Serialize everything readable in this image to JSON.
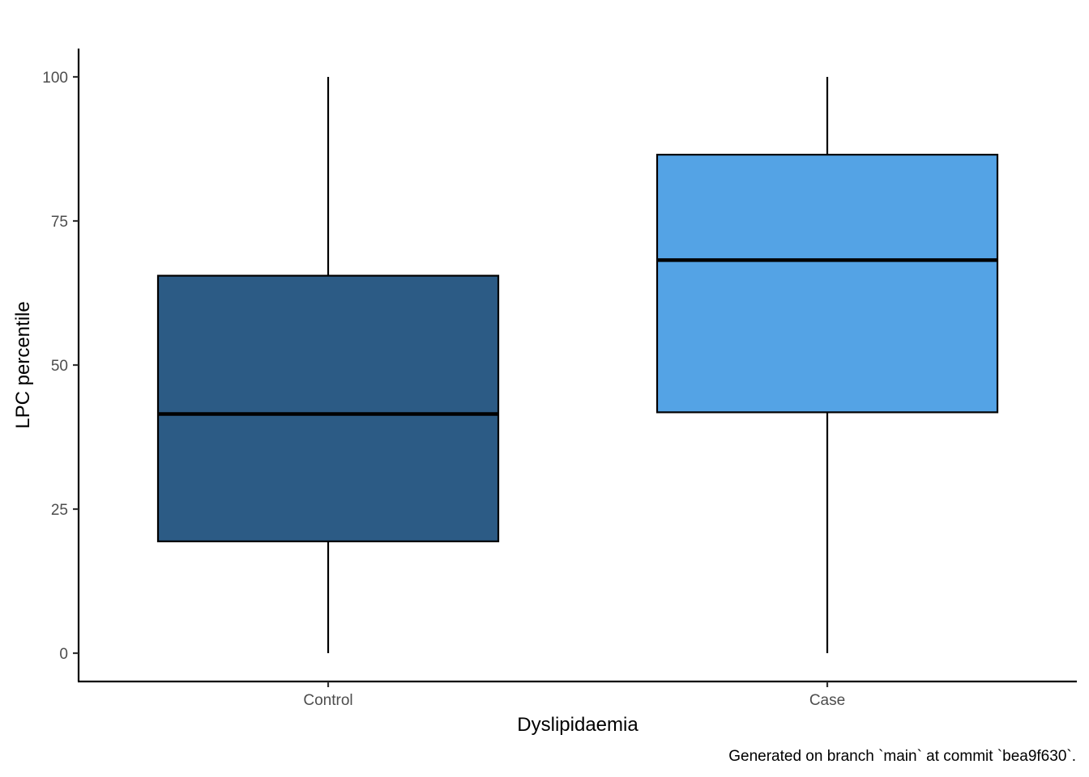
{
  "chart_data": {
    "type": "box",
    "categories": [
      "Control",
      "Case"
    ],
    "boxes": [
      {
        "category": "Control",
        "min": 0,
        "q1": 19.4,
        "median": 41.5,
        "q3": 65.5,
        "max": 100,
        "fill": "#2c5b85"
      },
      {
        "category": "Case",
        "min": 0,
        "q1": 41.8,
        "median": 68.2,
        "q3": 86.5,
        "max": 100,
        "fill": "#54a3e5"
      }
    ],
    "xlabel": "Dyslipidaemia",
    "ylabel": "LPC percentile",
    "ylim": [
      -5,
      105
    ],
    "yticks": [
      0,
      25,
      50,
      75,
      100
    ],
    "ytick_labels": [
      "0",
      "25",
      "50",
      "75",
      "100"
    ],
    "grid": false,
    "legend": "none",
    "caption": "Generated on branch `main` at commit `bea9f630`."
  }
}
